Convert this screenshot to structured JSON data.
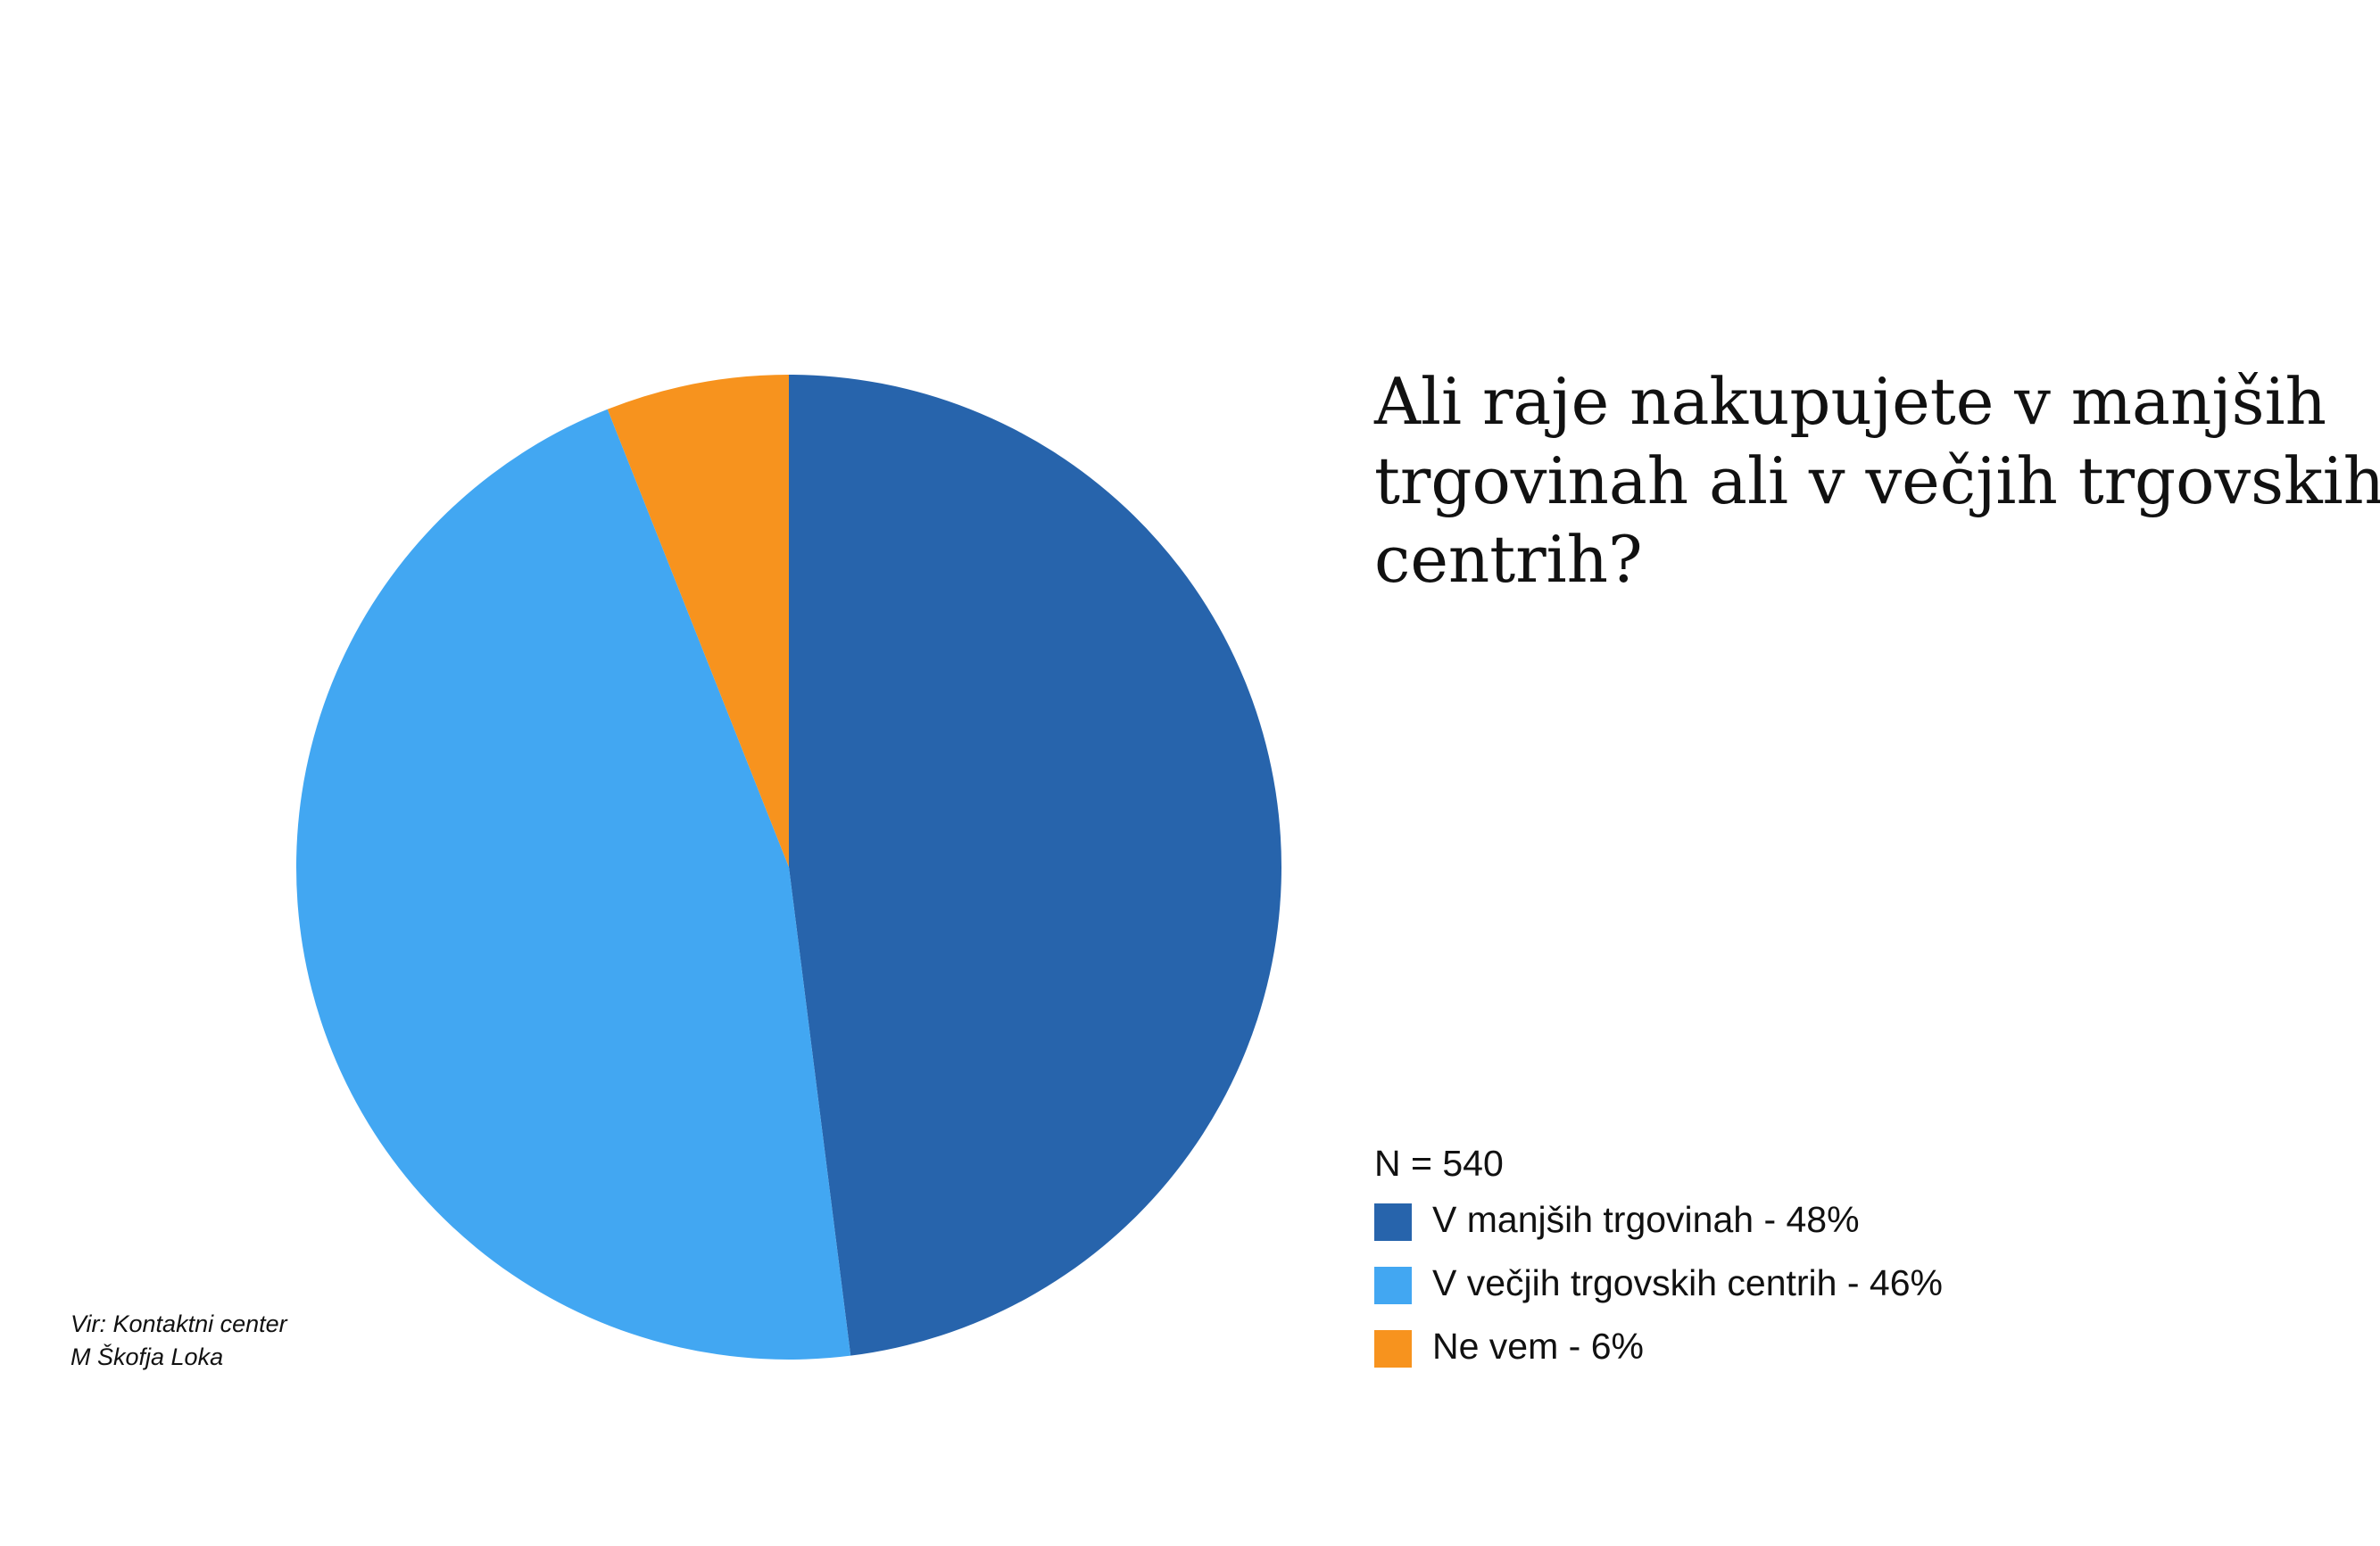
{
  "chart_data": {
    "type": "pie",
    "title": [
      "Ali raje nakupujete v manjših",
      "trgovinah ali v večjih trgovskih",
      "centrih?"
    ],
    "note": "N = 540",
    "source": [
      "Vir: Kontaktni center",
      "M Škofja Loka"
    ],
    "categories": [
      "V manjših trgovinah - 48%",
      "V večjih trgovskih centrih - 46%",
      "Ne vem - 6%"
    ],
    "values": [
      48,
      46,
      6
    ],
    "colors": [
      "#2764ac",
      "#42a7f2",
      "#f7931e"
    ]
  }
}
